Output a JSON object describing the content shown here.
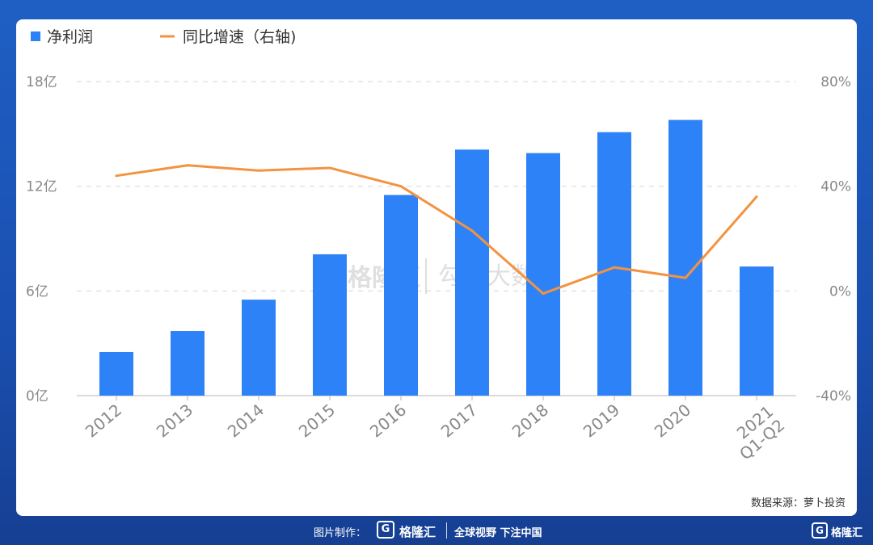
{
  "legend": {
    "bar_label": "净利润",
    "line_label": "同比增速（右轴)"
  },
  "watermark": {
    "brand1": "格隆汇",
    "brand2": "勾股大数据"
  },
  "source": "数据来源：萝卜投资",
  "footer": {
    "credit": "图片制作：",
    "logo_letter": "G",
    "logo_name": "格隆汇",
    "slogan": "全球视野 下注中国",
    "corner_name": "格隆汇"
  },
  "colors": {
    "bar": "#2e82f7",
    "line": "#f39340",
    "grid": "#e3e3e3",
    "background": "#1d58bd"
  },
  "chart_data": {
    "type": "bar",
    "title": "",
    "categories": [
      "2012",
      "2013",
      "2014",
      "2015",
      "2016",
      "2017",
      "2018",
      "2019",
      "2020",
      "2021 Q1-Q2"
    ],
    "category_lines": [
      [
        "2012"
      ],
      [
        "2013"
      ],
      [
        "2014"
      ],
      [
        "2015"
      ],
      [
        "2016"
      ],
      [
        "2017"
      ],
      [
        "2018"
      ],
      [
        "2019"
      ],
      [
        "2020"
      ],
      [
        "2021",
        "Q1-Q2"
      ]
    ],
    "series": [
      {
        "name": "净利润",
        "type": "bar",
        "axis": "left",
        "unit": "亿",
        "values": [
          2.5,
          3.7,
          5.5,
          8.1,
          11.5,
          14.1,
          13.9,
          15.1,
          15.8,
          7.4
        ]
      },
      {
        "name": "同比增速（右轴)",
        "type": "line",
        "axis": "right",
        "unit": "%",
        "values": [
          44,
          48,
          46,
          47,
          40,
          23,
          -1,
          9,
          5,
          36
        ]
      }
    ],
    "left_axis": {
      "ticks": [
        "0亿",
        "6亿",
        "12亿",
        "18亿"
      ],
      "ylim": [
        0,
        18
      ]
    },
    "right_axis": {
      "ticks": [
        "-40%",
        "0%",
        "40%",
        "80%"
      ],
      "ylim": [
        -40,
        80
      ]
    },
    "grid": true,
    "legend_position": "top-left"
  }
}
